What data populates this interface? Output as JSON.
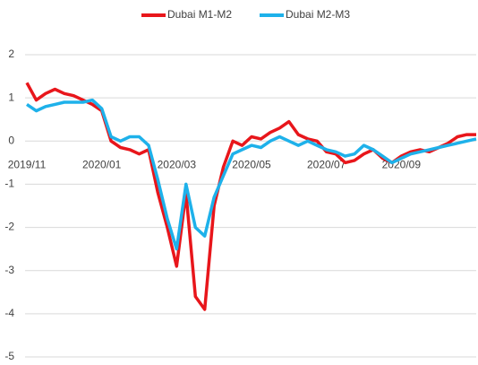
{
  "chart_data": {
    "type": "line",
    "categories": [
      "2019/11",
      null,
      null,
      null,
      null,
      null,
      null,
      null,
      "2020/01",
      null,
      null,
      null,
      null,
      null,
      null,
      null,
      "2020/03",
      null,
      null,
      null,
      null,
      null,
      null,
      null,
      "2020/05",
      null,
      null,
      null,
      null,
      null,
      null,
      null,
      "2020/07",
      null,
      null,
      null,
      null,
      null,
      null,
      null,
      "2020/09",
      null,
      null,
      null,
      null,
      null,
      null,
      null,
      null
    ],
    "series": [
      {
        "name": "Dubai M1-M2",
        "color": "#e8161b",
        "values": [
          1.35,
          0.95,
          1.1,
          1.2,
          1.1,
          1.05,
          0.95,
          0.85,
          0.7,
          0.0,
          -0.15,
          -0.2,
          -0.3,
          -0.2,
          -1.2,
          -2.0,
          -2.9,
          -1.2,
          -3.6,
          -3.9,
          -1.5,
          -0.6,
          0.0,
          -0.1,
          0.1,
          0.05,
          0.2,
          0.3,
          0.45,
          0.15,
          0.05,
          0.0,
          -0.25,
          -0.3,
          -0.5,
          -0.45,
          -0.3,
          -0.2,
          -0.4,
          -0.5,
          -0.35,
          -0.25,
          -0.2,
          -0.25,
          -0.15,
          -0.05,
          0.1,
          0.15,
          0.15
        ]
      },
      {
        "name": "Dubai M2-M3",
        "color": "#1eb1ea",
        "values": [
          0.85,
          0.7,
          0.8,
          0.85,
          0.9,
          0.9,
          0.9,
          0.95,
          0.75,
          0.1,
          0.0,
          0.1,
          0.1,
          -0.1,
          -0.9,
          -1.8,
          -2.5,
          -1.0,
          -2.0,
          -2.2,
          -1.3,
          -0.8,
          -0.3,
          -0.2,
          -0.1,
          -0.15,
          0.0,
          0.1,
          0.0,
          -0.1,
          0.0,
          -0.1,
          -0.2,
          -0.25,
          -0.35,
          -0.3,
          -0.1,
          -0.2,
          -0.35,
          -0.5,
          -0.4,
          -0.3,
          -0.25,
          -0.2,
          -0.15,
          -0.1,
          -0.05,
          0.0,
          0.05
        ]
      }
    ],
    "ylim": [
      -5,
      2
    ],
    "yticks": [
      -5,
      -4,
      -3,
      -2,
      -1,
      0,
      1,
      2
    ],
    "grid": true,
    "legend": "top"
  }
}
